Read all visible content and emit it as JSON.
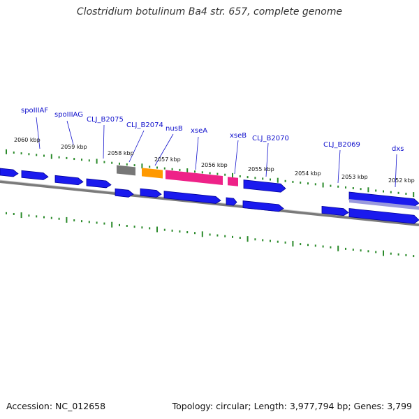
{
  "title": "Clostridium botulinum Ba4 str. 657, complete genome",
  "footer": {
    "accession": "Accession: NC_012658",
    "summary": "Topology: circular; Length: 3,977,794 bp; Genes: 3,799"
  },
  "colors": {
    "cds": "#1a1aee",
    "cds_dark": "#00009a",
    "tick": "#2a8a2a",
    "backbone": "#888888",
    "gene_gray": "#777777",
    "gene_orange": "#ff9900",
    "gene_pink": "#ee2288",
    "gene_lavender": "#9999dd",
    "label": "#1010cc"
  },
  "kbp_ticks": [
    "2060 kbp",
    "2059 kbp",
    "2058 kbp",
    "2057 kbp",
    "2056 kbp",
    "2055 kbp",
    "2054 kbp",
    "2053 kbp",
    "2052 kbp"
  ],
  "gene_labels": [
    "spoIIIAF",
    "spoIIIAG",
    "CLJ_B2075",
    "CLJ_B2074",
    "nusB",
    "xseA",
    "xseB",
    "CLJ_B2070",
    "CLJ_B2069",
    "dxs"
  ]
}
